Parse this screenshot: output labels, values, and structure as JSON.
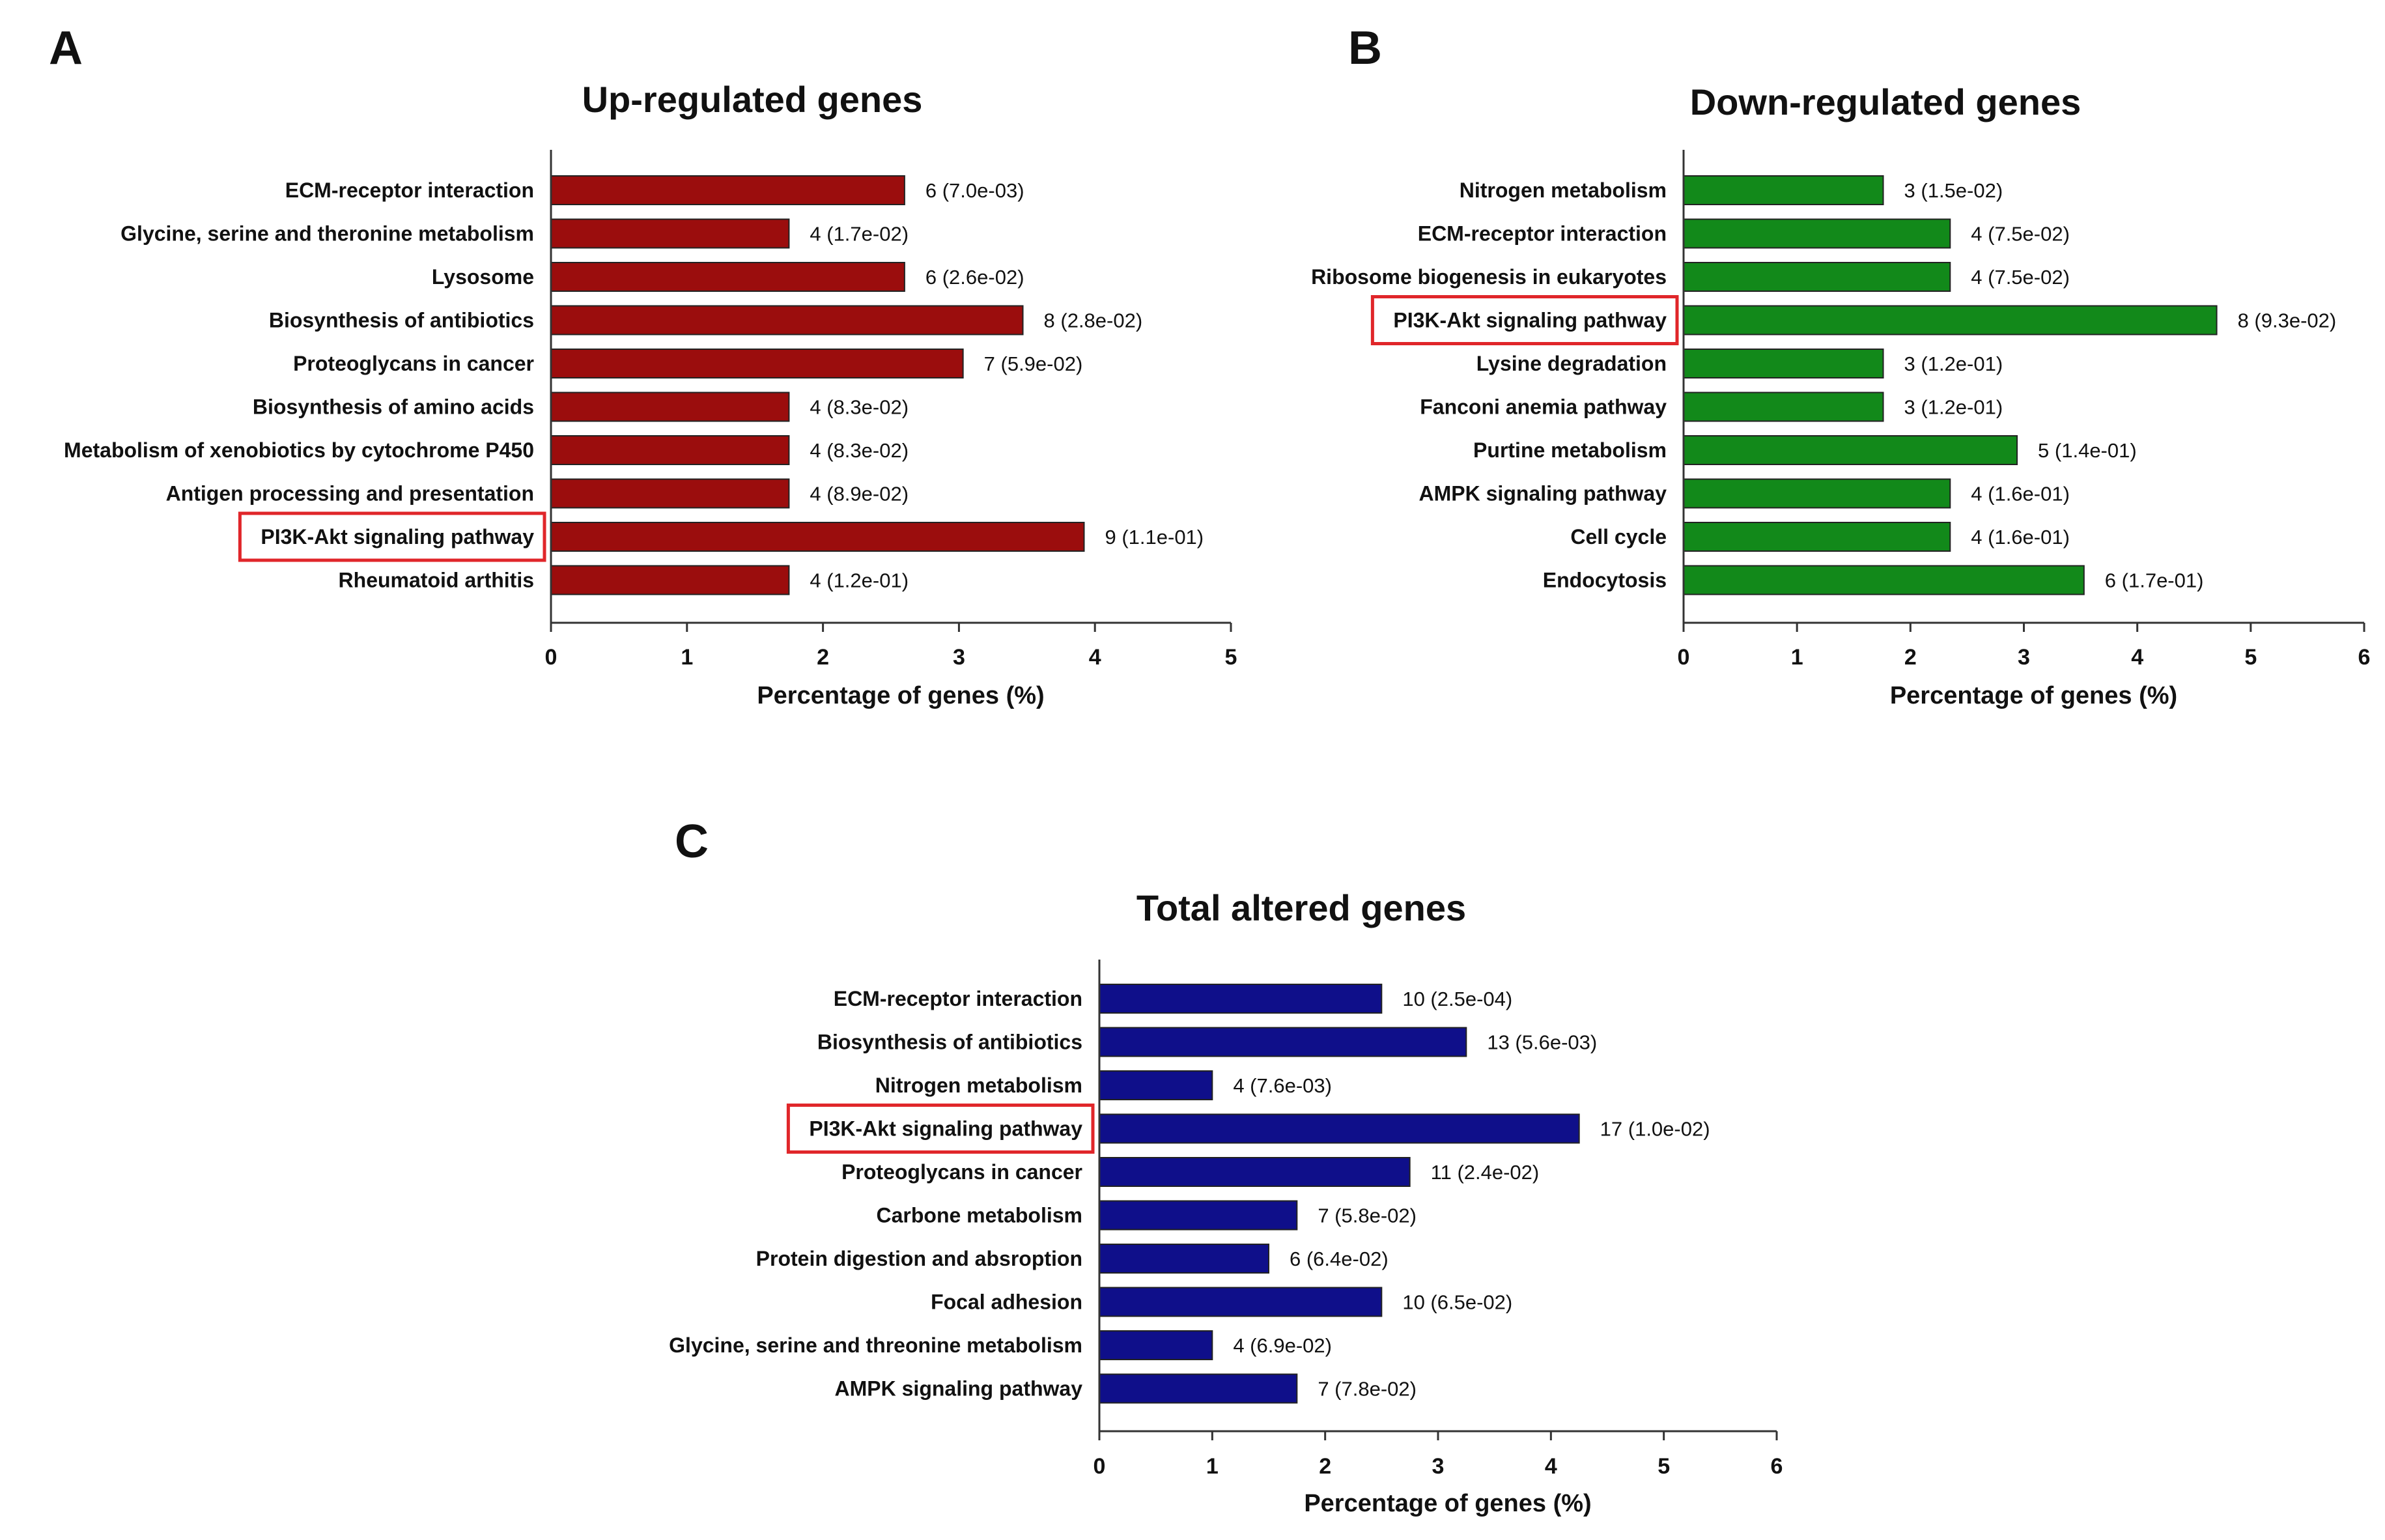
{
  "chart_data": [
    {
      "id": "A",
      "type": "bar",
      "orientation": "horizontal",
      "panel_letter": "A",
      "title": "Up-regulated genes",
      "xlabel": "Percentage of genes (%)",
      "ylabel": "",
      "xlim": [
        0,
        5
      ],
      "xticks": [
        "0",
        "1",
        "2",
        "3",
        "4",
        "5"
      ],
      "bar_color": "#9b0d0d",
      "highlight_color": "#e0262a",
      "categories": [
        "ECM-receptor interaction",
        "Glycine, serine and theronine metabolism",
        "Lysosome",
        "Biosynthesis of antibiotics",
        "Proteoglycans in cancer",
        "Biosynthesis of amino acids",
        "Metabolism of xenobiotics by cytochrome P450",
        "Antigen processing and presentation",
        "PI3K-Akt signaling pathway",
        "Rheumatoid arthitis"
      ],
      "values": [
        2.6,
        1.75,
        2.6,
        3.47,
        3.03,
        1.75,
        1.75,
        1.75,
        3.92,
        1.75
      ],
      "data_labels": [
        "6 (7.0e-03)",
        "4 (1.7e-02)",
        "6 (2.6e-02)",
        "8 (2.8e-02)",
        "7 (5.9e-02)",
        "4 (8.3e-02)",
        "4 (8.3e-02)",
        "4 (8.9e-02)",
        "9 (1.1e-01)",
        "4 (1.2e-01)"
      ],
      "highlighted": "PI3K-Akt signaling pathway"
    },
    {
      "id": "B",
      "type": "bar",
      "orientation": "horizontal",
      "panel_letter": "B",
      "title": "Down-regulated genes",
      "xlabel": "Percentage of genes (%)",
      "ylabel": "",
      "xlim": [
        0,
        6
      ],
      "xticks": [
        "0",
        "1",
        "2",
        "3",
        "4",
        "5",
        "6"
      ],
      "bar_color": "#12891a",
      "highlight_color": "#e0262a",
      "categories": [
        "Nitrogen metabolism",
        "ECM-receptor interaction",
        "Ribosome biogenesis in eukaryotes",
        "PI3K-Akt signaling pathway",
        "Lysine degradation",
        "Fanconi anemia pathway",
        "Purtine metabolism",
        "AMPK signaling pathway",
        "Cell cycle",
        "Endocytosis"
      ],
      "values": [
        1.76,
        2.35,
        2.35,
        4.7,
        1.76,
        1.76,
        2.94,
        2.35,
        2.35,
        3.53
      ],
      "data_labels": [
        "3 (1.5e-02)",
        "4 (7.5e-02)",
        "4 (7.5e-02)",
        "8 (9.3e-02)",
        "3 (1.2e-01)",
        "3 (1.2e-01)",
        "5 (1.4e-01)",
        "4 (1.6e-01)",
        "4 (1.6e-01)",
        "6 (1.7e-01)"
      ],
      "highlighted": "PI3K-Akt signaling pathway"
    },
    {
      "id": "C",
      "type": "bar",
      "orientation": "horizontal",
      "panel_letter": "C",
      "title": "Total altered genes",
      "xlabel": "Percentage of genes (%)",
      "ylabel": "",
      "xlim": [
        0,
        6
      ],
      "xticks": [
        "0",
        "1",
        "2",
        "3",
        "4",
        "5",
        "6"
      ],
      "bar_color": "#0f0f8a",
      "highlight_color": "#e0262a",
      "categories": [
        "ECM-receptor interaction",
        "Biosynthesis of antibiotics",
        "Nitrogen metabolism",
        "PI3K-Akt signaling pathway",
        "Proteoglycans in cancer",
        "Carbone metabolism",
        "Protein digestion and absroption",
        "Focal adhesion",
        "Glycine, serine and threonine metabolism",
        "AMPK signaling pathway"
      ],
      "values": [
        2.5,
        3.25,
        1.0,
        4.25,
        2.75,
        1.75,
        1.5,
        2.5,
        1.0,
        1.75
      ],
      "data_labels": [
        "10 (2.5e-04)",
        "13 (5.6e-03)",
        "4 (7.6e-03)",
        "17 (1.0e-02)",
        "11 (2.4e-02)",
        "7 (5.8e-02)",
        "6 (6.4e-02)",
        "10 (6.5e-02)",
        "4 (6.9e-02)",
        "7 (7.8e-02)"
      ],
      "highlighted": "PI3K-Akt signaling pathway"
    }
  ]
}
